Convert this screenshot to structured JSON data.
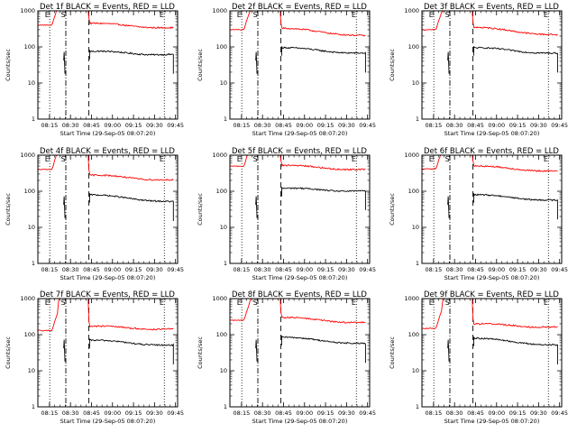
{
  "figure": {
    "background": "#ffffff"
  },
  "colors": {
    "events": "#000000",
    "lld": "#ff0000",
    "frame": "#000000"
  },
  "chart_data": [
    {
      "type": "line",
      "title": "Det 1f BLACK = Events, RED = LLD",
      "ylabel": "Counts/sec",
      "xlabel": "Start Time (29-Sep-05 08:07:20)",
      "xticks": [
        "08:15",
        "08:30",
        "08:45",
        "09:00",
        "09:15",
        "09:30",
        "09:45"
      ],
      "yticks": [
        "1",
        "10",
        "100",
        "1000"
      ],
      "ylim": [
        1,
        1000
      ],
      "yscale": "log",
      "markers": [
        "E",
        "S",
        "E"
      ],
      "series": [
        {
          "name": "Events",
          "color": "#000000",
          "pre": 60,
          "start": 75,
          "end": 60
        },
        {
          "name": "LLD",
          "color": "#ff0000",
          "pre": 400,
          "start": 450,
          "end": 330
        }
      ]
    },
    {
      "type": "line",
      "title": "Det 2f BLACK = Events, RED = LLD",
      "ylabel": "Counts/sec",
      "xlabel": "Start Time (29-Sep-05 08:07:20)",
      "xticks": [
        "08:15",
        "08:30",
        "08:45",
        "09:00",
        "09:15",
        "09:30",
        "09:45"
      ],
      "yticks": [
        "1",
        "10",
        "100",
        "1000"
      ],
      "ylim": [
        1,
        1000
      ],
      "yscale": "log",
      "markers": [
        "E",
        "S",
        "E"
      ],
      "series": [
        {
          "name": "Events",
          "color": "#000000",
          "pre": 60,
          "start": 95,
          "end": 65
        },
        {
          "name": "LLD",
          "color": "#ff0000",
          "pre": 300,
          "start": 330,
          "end": 200
        }
      ]
    },
    {
      "type": "line",
      "title": "Det 3f BLACK = Events, RED = LLD",
      "ylabel": "Counts/sec",
      "xlabel": "Start Time (29-Sep-05 08:07:20)",
      "xticks": [
        "08:15",
        "08:30",
        "08:45",
        "09:00",
        "09:15",
        "09:30",
        "09:45"
      ],
      "yticks": [
        "1",
        "10",
        "100",
        "1000"
      ],
      "ylim": [
        1,
        1000
      ],
      "yscale": "log",
      "markers": [
        "E",
        "S",
        "E"
      ],
      "series": [
        {
          "name": "Events",
          "color": "#000000",
          "pre": 60,
          "start": 95,
          "end": 65
        },
        {
          "name": "LLD",
          "color": "#ff0000",
          "pre": 300,
          "start": 350,
          "end": 210
        }
      ]
    },
    {
      "type": "line",
      "title": "Det 4f BLACK = Events, RED = LLD",
      "ylabel": "Counts/sec",
      "xlabel": "Start Time (29-Sep-05 08:07:20)",
      "xticks": [
        "08:15",
        "08:30",
        "08:45",
        "09:00",
        "09:15",
        "09:30",
        "09:45"
      ],
      "yticks": [
        "1",
        "10",
        "100",
        "1000"
      ],
      "ylim": [
        1,
        1000
      ],
      "yscale": "log",
      "markers": [
        "E",
        "S",
        "E"
      ],
      "series": [
        {
          "name": "Events",
          "color": "#000000",
          "pre": 60,
          "start": 80,
          "end": 50
        },
        {
          "name": "LLD",
          "color": "#ff0000",
          "pre": 400,
          "start": 280,
          "end": 200
        }
      ]
    },
    {
      "type": "line",
      "title": "Det 5f BLACK = Events, RED = LLD",
      "ylabel": "Counts/sec",
      "xlabel": "Start Time (29-Sep-05 08:07:20)",
      "xticks": [
        "08:15",
        "08:30",
        "08:45",
        "09:00",
        "09:15",
        "09:30",
        "09:45"
      ],
      "yticks": [
        "1",
        "10",
        "100",
        "1000"
      ],
      "ylim": [
        1,
        1000
      ],
      "yscale": "log",
      "markers": [
        "E",
        "S",
        "E"
      ],
      "series": [
        {
          "name": "Events",
          "color": "#000000",
          "pre": 60,
          "start": 120,
          "end": 100
        },
        {
          "name": "LLD",
          "color": "#ff0000",
          "pre": 500,
          "start": 520,
          "end": 390
        }
      ]
    },
    {
      "type": "line",
      "title": "Det 6f BLACK = Events, RED = LLD",
      "ylabel": "Counts/sec",
      "xlabel": "Start Time (29-Sep-05 08:07:20)",
      "xticks": [
        "08:15",
        "08:30",
        "08:45",
        "09:00",
        "09:15",
        "09:30",
        "09:45"
      ],
      "yticks": [
        "1",
        "10",
        "100",
        "1000"
      ],
      "ylim": [
        1,
        1000
      ],
      "yscale": "log",
      "markers": [
        "E",
        "S",
        "E"
      ],
      "series": [
        {
          "name": "Events",
          "color": "#000000",
          "pre": 60,
          "start": 80,
          "end": 55
        },
        {
          "name": "LLD",
          "color": "#ff0000",
          "pre": 420,
          "start": 500,
          "end": 350
        }
      ]
    },
    {
      "type": "line",
      "title": "Det 7f BLACK = Events, RED = LLD",
      "ylabel": "Counts/sec",
      "xlabel": "Start Time (29-Sep-05 08:07:20)",
      "xticks": [
        "08:15",
        "08:30",
        "08:45",
        "09:00",
        "09:15",
        "09:30",
        "09:45"
      ],
      "yticks": [
        "1",
        "10",
        "100",
        "1000"
      ],
      "ylim": [
        1,
        1000
      ],
      "yscale": "log",
      "markers": [
        "E",
        "S",
        "E"
      ],
      "series": [
        {
          "name": "Events",
          "color": "#000000",
          "pre": 60,
          "start": 70,
          "end": 50
        },
        {
          "name": "LLD",
          "color": "#ff0000",
          "pre": 130,
          "start": 170,
          "end": 140
        }
      ]
    },
    {
      "type": "line",
      "title": "Det 8f BLACK = Events, RED = LLD",
      "ylabel": "Counts/sec",
      "xlabel": "Start Time (29-Sep-05 08:07:20)",
      "xticks": [
        "08:15",
        "08:30",
        "08:45",
        "09:00",
        "09:15",
        "09:30",
        "09:45"
      ],
      "yticks": [
        "1",
        "10",
        "100",
        "1000"
      ],
      "ylim": [
        1,
        1000
      ],
      "yscale": "log",
      "markers": [
        "E",
        "S",
        "E"
      ],
      "series": [
        {
          "name": "Events",
          "color": "#000000",
          "pre": 60,
          "start": 85,
          "end": 55
        },
        {
          "name": "LLD",
          "color": "#ff0000",
          "pre": 250,
          "start": 300,
          "end": 210
        }
      ]
    },
    {
      "type": "line",
      "title": "Det 9f BLACK = Events, RED = LLD",
      "ylabel": "Counts/sec",
      "xlabel": "Start Time (29-Sep-05 08:07:20)",
      "xticks": [
        "08:15",
        "08:30",
        "08:45",
        "09:00",
        "09:15",
        "09:30",
        "09:45"
      ],
      "yticks": [
        "1",
        "10",
        "100",
        "1000"
      ],
      "ylim": [
        1,
        1000
      ],
      "yscale": "log",
      "markers": [
        "E",
        "S",
        "E"
      ],
      "series": [
        {
          "name": "Events",
          "color": "#000000",
          "pre": 60,
          "start": 80,
          "end": 50
        },
        {
          "name": "LLD",
          "color": "#ff0000",
          "pre": 150,
          "start": 200,
          "end": 160
        }
      ]
    }
  ]
}
